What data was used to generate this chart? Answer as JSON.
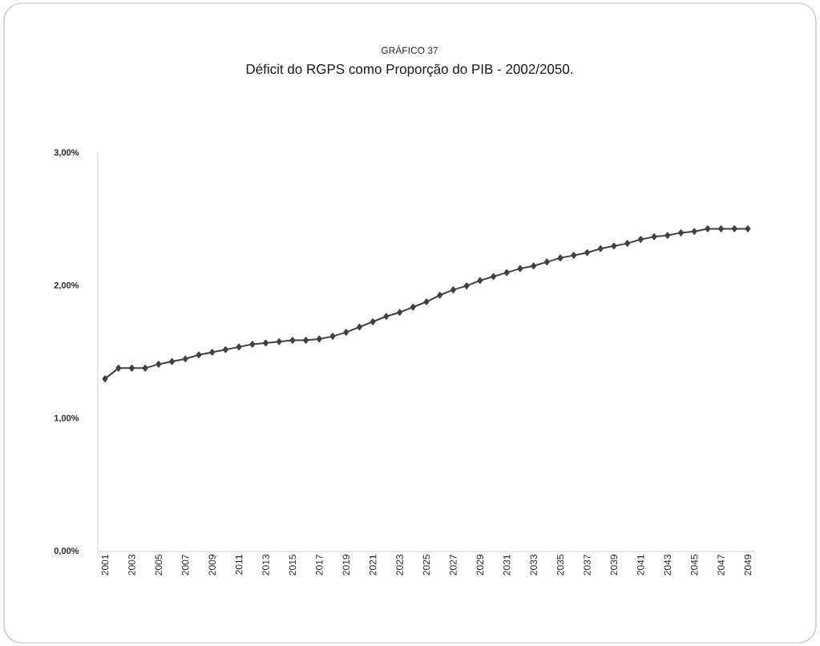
{
  "chart_data": {
    "type": "line",
    "title": "GRÁFICO 37",
    "subtitle": "Déficit do RGPS como Proporção do PIB - 2002/2050.",
    "categories": [
      "2001",
      null,
      "2003",
      null,
      "2005",
      null,
      "2007",
      null,
      "2009",
      null,
      "2011",
      null,
      "2013",
      null,
      "2015",
      null,
      "2017",
      null,
      "2019",
      null,
      "2021",
      null,
      "2023",
      null,
      "2025",
      null,
      "2027",
      null,
      "2029",
      null,
      "2031",
      null,
      "2033",
      null,
      "2035",
      null,
      "2037",
      null,
      "2039",
      null,
      "2041",
      null,
      "2043",
      null,
      "2045",
      null,
      "2047",
      null,
      "2049"
    ],
    "series": [
      {
        "color": "#404040",
        "values": [
          1.3,
          1.38,
          1.38,
          1.38,
          1.41,
          1.43,
          1.45,
          1.48,
          1.5,
          1.52,
          1.54,
          1.56,
          1.57,
          1.58,
          1.59,
          1.59,
          1.6,
          1.62,
          1.65,
          1.69,
          1.73,
          1.77,
          1.8,
          1.84,
          1.88,
          1.93,
          1.97,
          2.0,
          2.04,
          2.07,
          2.1,
          2.13,
          2.15,
          2.18,
          2.21,
          2.23,
          2.25,
          2.28,
          2.3,
          2.32,
          2.35,
          2.37,
          2.38,
          2.4,
          2.41,
          2.43,
          2.43,
          2.43,
          2.43
        ]
      }
    ],
    "ylim": [
      0,
      3
    ],
    "yticks": [
      {
        "value": 0,
        "label": "0,00%"
      },
      {
        "value": 1,
        "label": "1,00%"
      },
      {
        "value": 2,
        "label": "2,00%"
      },
      {
        "value": 3,
        "label": "3,00%"
      }
    ],
    "marker": "diamond",
    "line_style": "solid"
  }
}
